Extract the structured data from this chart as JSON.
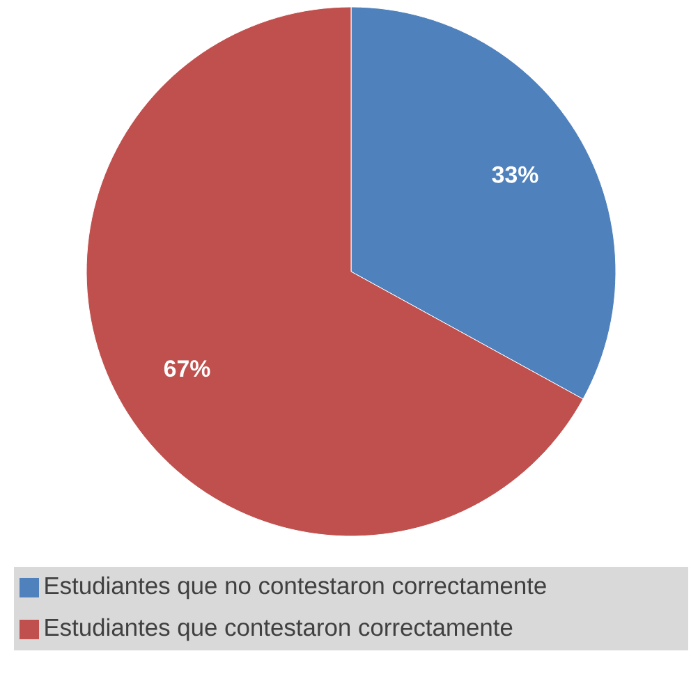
{
  "chart_data": {
    "type": "pie",
    "categories": [
      "Estudiantes que no contestaron correctamente",
      "Estudiantes que contestaron correctamente"
    ],
    "values": [
      33,
      67
    ],
    "colors": [
      "#4f81bd",
      "#c0504d"
    ],
    "value_labels": [
      "33%",
      "67%"
    ],
    "legend": "bottom"
  }
}
